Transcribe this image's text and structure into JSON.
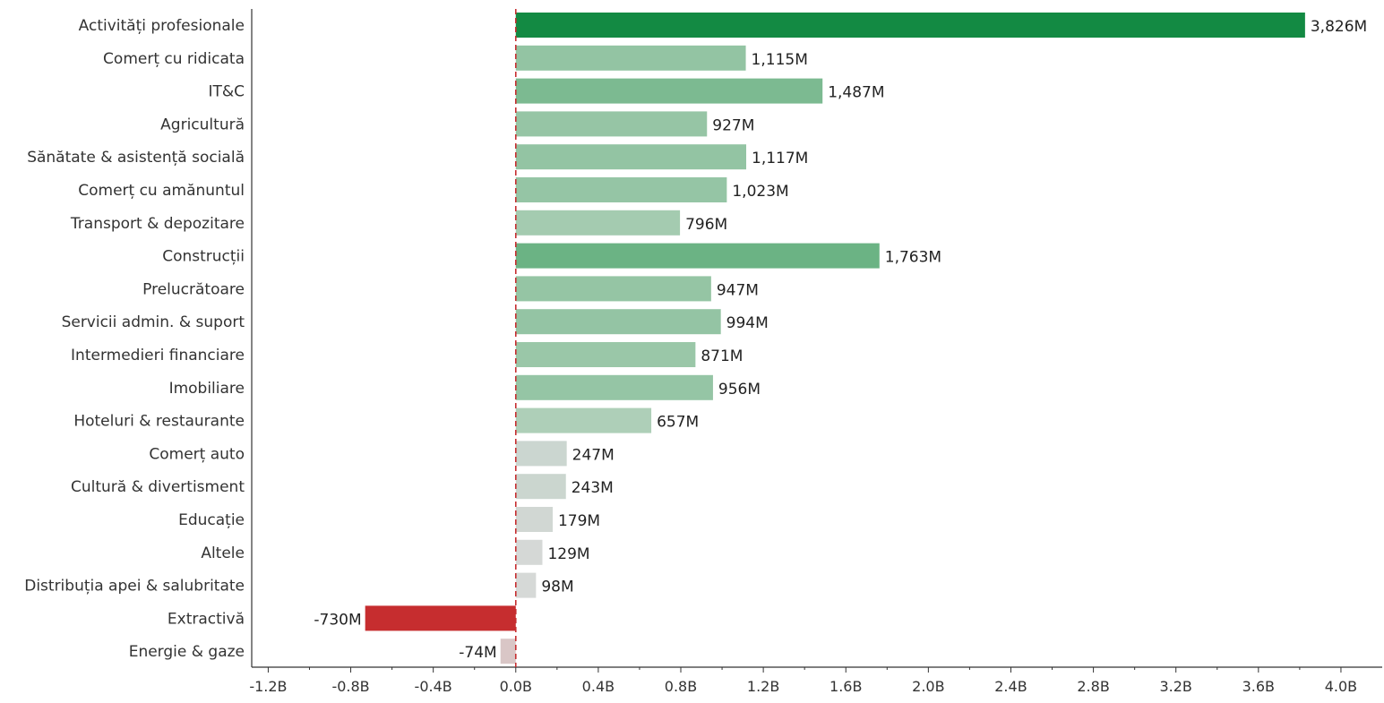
{
  "chart_data": {
    "type": "bar",
    "orientation": "horizontal",
    "categories": [
      "Activități profesionale",
      "Comerț cu ridicata",
      "IT&C",
      "Agricultură",
      "Sănătate & asistență socială",
      "Comerț cu amănuntul",
      "Transport & depozitare",
      "Construcții",
      "Prelucrătoare",
      "Servicii admin. & suport",
      "Intermedieri financiare",
      "Imobiliare",
      "Hoteluri & restaurante",
      "Comerț auto",
      "Cultură & divertisment",
      "Educație",
      "Altele",
      "Distribuția apei & salubritate",
      "Extractivă",
      "Energie & gaze"
    ],
    "values": [
      3826,
      1115,
      1487,
      927,
      1117,
      1023,
      796,
      1763,
      947,
      994,
      871,
      956,
      657,
      247,
      243,
      179,
      129,
      98,
      -730,
      -74
    ],
    "value_labels": [
      "3,826M",
      "1,115M",
      "1,487M",
      "927M",
      "1,117M",
      "1,023M",
      "796M",
      "1,763M",
      "947M",
      "994M",
      "871M",
      "956M",
      "657M",
      "247M",
      "243M",
      "179M",
      "129M",
      "98M",
      "-730M",
      "-74M"
    ],
    "value_unit": "millions",
    "bar_colors": [
      "#138a43",
      "#93c4a3",
      "#7cba91",
      "#96c5a5",
      "#93c4a3",
      "#95c5a5",
      "#a4cbb0",
      "#6bb384",
      "#95c5a4",
      "#94c4a4",
      "#9ac7a8",
      "#95c5a5",
      "#aecfb8",
      "#cbd6d0",
      "#cbd6cf",
      "#d1d7d3",
      "#d5d8d6",
      "#d6d9d7",
      "#c62d2f",
      "#d9c6c6"
    ],
    "xlim": [
      -1.28,
      4.2
    ],
    "x_ticks": [
      -1.2,
      -0.8,
      -0.4,
      0.0,
      0.4,
      0.8,
      1.2,
      1.6,
      2.0,
      2.4,
      2.8,
      3.2,
      3.6,
      4.0
    ],
    "x_tick_labels": [
      "-1.2B",
      "-0.8B",
      "-0.4B",
      "0.0B",
      "0.4B",
      "0.8B",
      "1.2B",
      "1.6B",
      "2.0B",
      "2.4B",
      "2.8B",
      "3.2B",
      "3.6B",
      "4.0B"
    ],
    "zero_line_color": "#c62d2f",
    "title": "",
    "xlabel": "",
    "ylabel": "",
    "grid": false
  }
}
